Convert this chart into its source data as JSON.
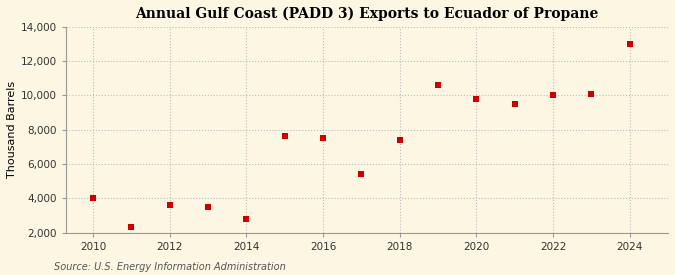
{
  "title": "Annual Gulf Coast (PADD 3) Exports to Ecuador of Propane",
  "ylabel": "Thousand Barrels",
  "source": "Source: U.S. Energy Information Administration",
  "background_color": "#fdf6e3",
  "years": [
    2010,
    2011,
    2012,
    2013,
    2014,
    2015,
    2016,
    2017,
    2018,
    2019,
    2020,
    2021,
    2022,
    2023,
    2024
  ],
  "values": [
    4000,
    2300,
    3600,
    3500,
    2800,
    7600,
    7500,
    5400,
    7400,
    10600,
    9800,
    9500,
    10000,
    10100,
    13000
  ],
  "marker_color": "#cc0000",
  "marker": "s",
  "marker_size": 4,
  "ylim": [
    2000,
    14000
  ],
  "yticks": [
    2000,
    4000,
    6000,
    8000,
    10000,
    12000,
    14000
  ],
  "ytick_labels": [
    "2,000",
    "4,000",
    "6,000",
    "8,000",
    "10,000",
    "12,000",
    "14,000"
  ],
  "xticks": [
    2010,
    2012,
    2014,
    2016,
    2018,
    2020,
    2022,
    2024
  ],
  "grid_color": "#bbbbbb",
  "title_fontsize": 10,
  "axis_label_fontsize": 8,
  "tick_fontsize": 7.5,
  "source_fontsize": 7
}
